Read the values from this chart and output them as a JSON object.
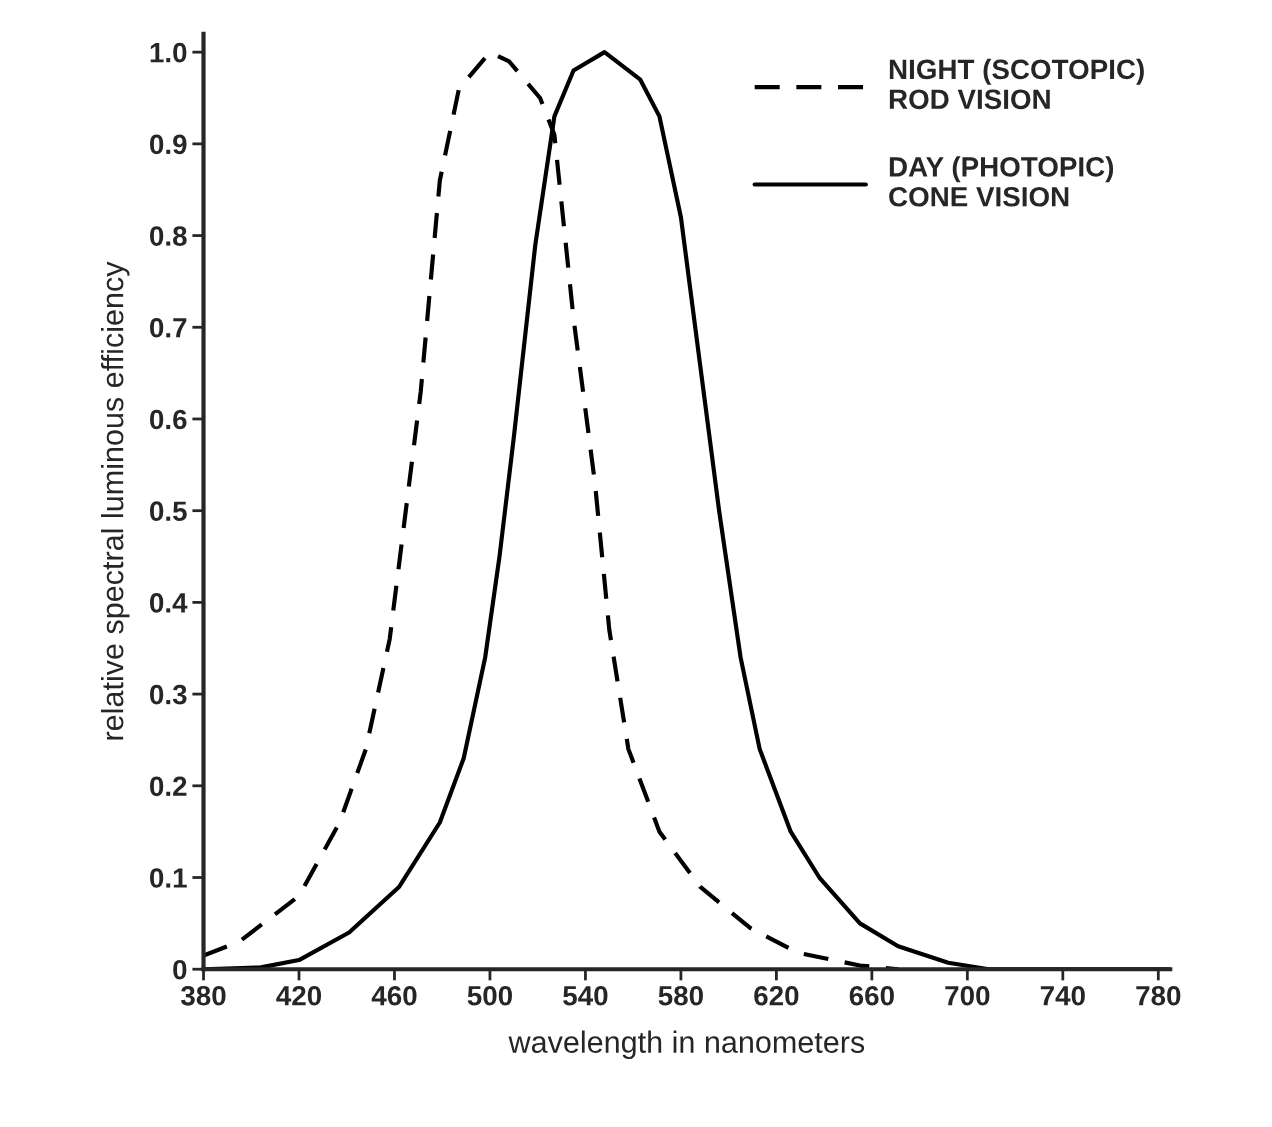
{
  "chart_data": {
    "type": "line",
    "xlabel": "wavelength in nanometers",
    "ylabel": "relative spectral luminous efficiency",
    "xlim": [
      380,
      785
    ],
    "xticks": [
      380,
      420,
      460,
      500,
      540,
      580,
      620,
      660,
      700,
      740,
      780
    ],
    "ylim": [
      0,
      1.02
    ],
    "yticks": [
      0,
      {
        "value": 0.1,
        "label": "0.1"
      },
      {
        "value": 0.2,
        "label": "0.2"
      },
      {
        "value": 0.3,
        "label": "0.3"
      },
      {
        "value": 0.4,
        "label": "0.4"
      },
      {
        "value": 0.5,
        "label": "0.5"
      },
      {
        "value": 0.6,
        "label": "0.6"
      },
      {
        "value": 0.7,
        "label": "0.7"
      },
      {
        "value": 0.8,
        "label": "0.8"
      },
      {
        "value": 0.9,
        "label": "0.9"
      },
      {
        "value": 1.0,
        "label": "1.0"
      }
    ],
    "grid": false,
    "legend": "top right",
    "marker": "none",
    "series": [
      {
        "name": "NIGHT (SCOTOPIC)\nROD VISION",
        "color": "#000000",
        "line_style": "dashed",
        "x": [
          380,
          395,
          420,
          437,
          448,
          458,
          471,
          479,
          487,
          500,
          508,
          521,
          527,
          535,
          544,
          550,
          558,
          571,
          588,
          609,
          629,
          655,
          671
        ],
        "values": [
          0.015,
          0.03,
          0.08,
          0.16,
          0.24,
          0.36,
          0.63,
          0.86,
          0.96,
          1.0,
          0.99,
          0.95,
          0.91,
          0.71,
          0.53,
          0.37,
          0.24,
          0.15,
          0.09,
          0.045,
          0.018,
          0.004,
          0.0
        ]
      },
      {
        "name": "DAY (PHOTOPIC)\nCONE VISION",
        "color": "#000000",
        "line_style": "solid",
        "x": [
          380,
          404,
          420,
          441,
          462,
          479,
          489,
          498,
          504,
          510,
          519,
          527,
          535,
          548,
          563,
          571,
          580,
          588,
          596,
          605,
          613,
          626,
          638,
          655,
          671,
          692,
          709,
          785
        ],
        "values": [
          0.0,
          0.002,
          0.01,
          0.04,
          0.09,
          0.16,
          0.23,
          0.34,
          0.45,
          0.58,
          0.79,
          0.93,
          0.98,
          1.0,
          0.97,
          0.93,
          0.82,
          0.66,
          0.5,
          0.34,
          0.24,
          0.15,
          0.1,
          0.05,
          0.025,
          0.007,
          0.0,
          0.0
        ]
      }
    ]
  }
}
